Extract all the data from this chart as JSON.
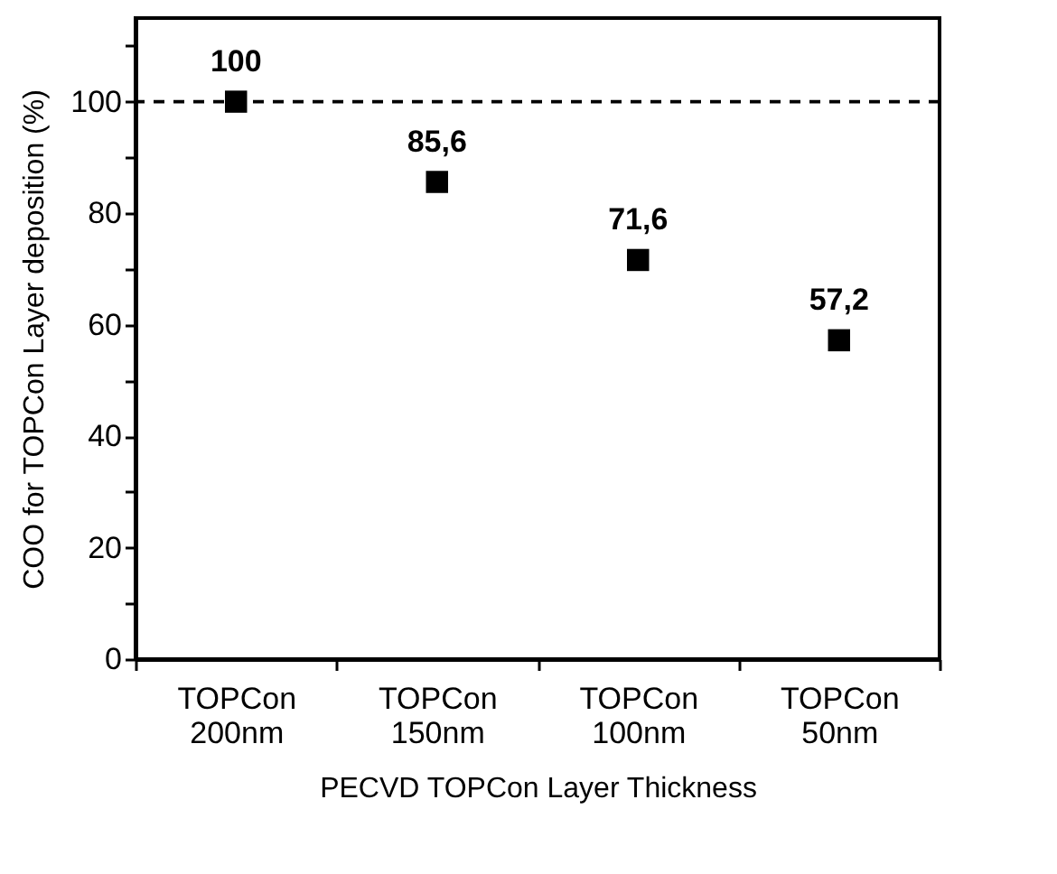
{
  "chart_data": {
    "type": "scatter",
    "xlabel": "PECVD TOPCon Layer Thickness",
    "ylabel": "COO for TOPCon Layer deposition (%)",
    "categories": [
      "TOPCon 200nm",
      "TOPCon 150nm",
      "TOPCon 100nm",
      "TOPCon 50nm"
    ],
    "series": [
      {
        "color": "#000000",
        "values": [
          100,
          85.6,
          71.6,
          57.2
        ],
        "value_labels": [
          "100",
          "85,6",
          "71,6",
          "57,2"
        ]
      }
    ],
    "ylim": [
      0,
      115
    ],
    "yticks": [
      0,
      {
        "value": 10,
        "label": null
      },
      20,
      {
        "value": 30,
        "label": null
      },
      40,
      {
        "value": 50,
        "label": null
      },
      60,
      {
        "value": 70,
        "label": null
      },
      80,
      {
        "value": 90,
        "label": null
      },
      100,
      {
        "value": 110,
        "label": null
      }
    ],
    "ref_lines": [
      {
        "axis": "y",
        "value": 100,
        "line_style": "dashed",
        "color": "#000000"
      }
    ],
    "marker": "square",
    "grid": false
  }
}
